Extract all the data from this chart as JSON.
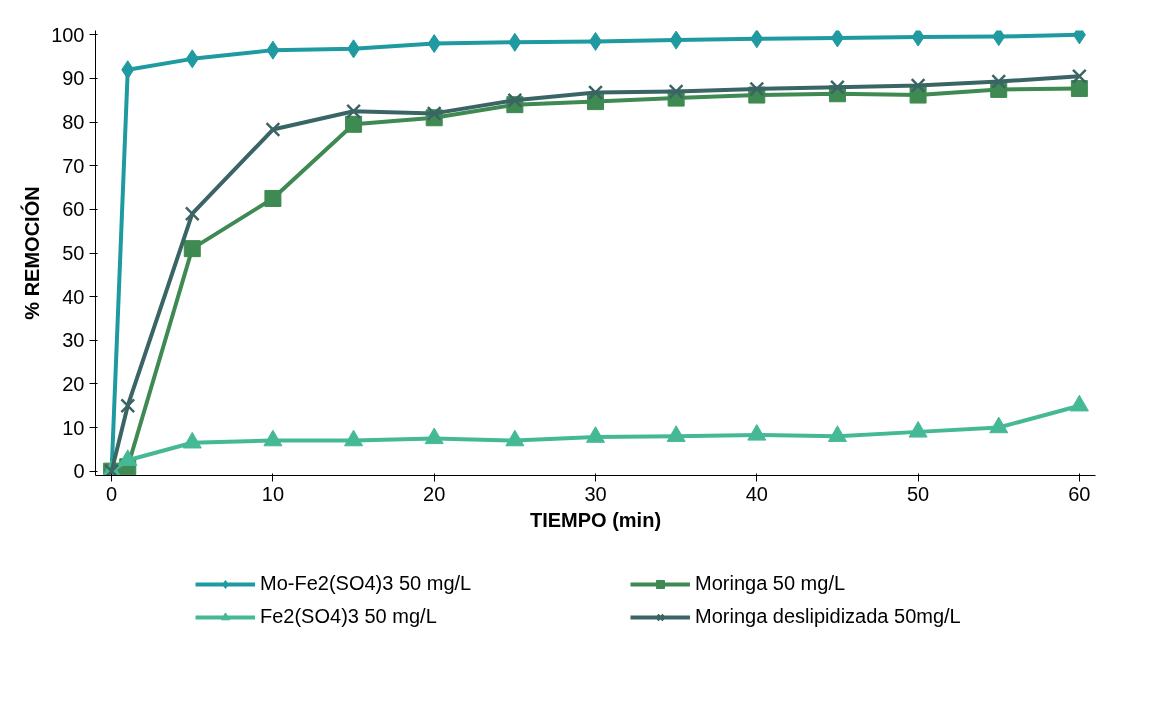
{
  "chart_data": {
    "type": "line",
    "xlabel": "TIEMPO (min)",
    "ylabel": "% REMOCIÓN",
    "x": [
      0,
      1,
      5,
      10,
      15,
      20,
      25,
      30,
      35,
      40,
      45,
      50,
      55,
      60
    ],
    "series": [
      {
        "name": "Mo-Fe2(SO4)3 50 mg/L",
        "color": "#1f9aa0",
        "marker": "diamond",
        "values": [
          0,
          92,
          94.5,
          96.5,
          96.8,
          98,
          98.3,
          98.5,
          98.8,
          99.1,
          99.3,
          99.5,
          99.6,
          100
        ]
      },
      {
        "name": "Moringa 50 mg/L",
        "color": "#3e8a52",
        "marker": "square",
        "values": [
          0,
          1,
          51,
          62.5,
          79.5,
          81,
          84,
          84.7,
          85.5,
          86.2,
          86.5,
          86.2,
          87.5,
          87.7
        ]
      },
      {
        "name": "Fe2(SO4)3 50 mg/L",
        "color": "#45b995",
        "marker": "triangle",
        "values": [
          0,
          2.5,
          6.5,
          7,
          7,
          7.5,
          7,
          7.8,
          8,
          8.3,
          8,
          9,
          10,
          15
        ]
      },
      {
        "name": "Moringa deslipidizada 50mg/L",
        "color": "#3b6565",
        "marker": "cross",
        "values": [
          0,
          15,
          59,
          78.3,
          82.5,
          82,
          85,
          86.8,
          87,
          87.6,
          88,
          88.4,
          89.3,
          90.5
        ]
      }
    ],
    "xlim": [
      -1,
      61
    ],
    "ylim": [
      -1,
      101
    ],
    "xticks": [
      0,
      10,
      20,
      30,
      40,
      50,
      60
    ],
    "yticks": [
      0,
      10,
      20,
      30,
      40,
      50,
      60,
      70,
      80,
      90,
      100
    ],
    "grid": false,
    "legend": "bottom",
    "line_style": "solid"
  }
}
